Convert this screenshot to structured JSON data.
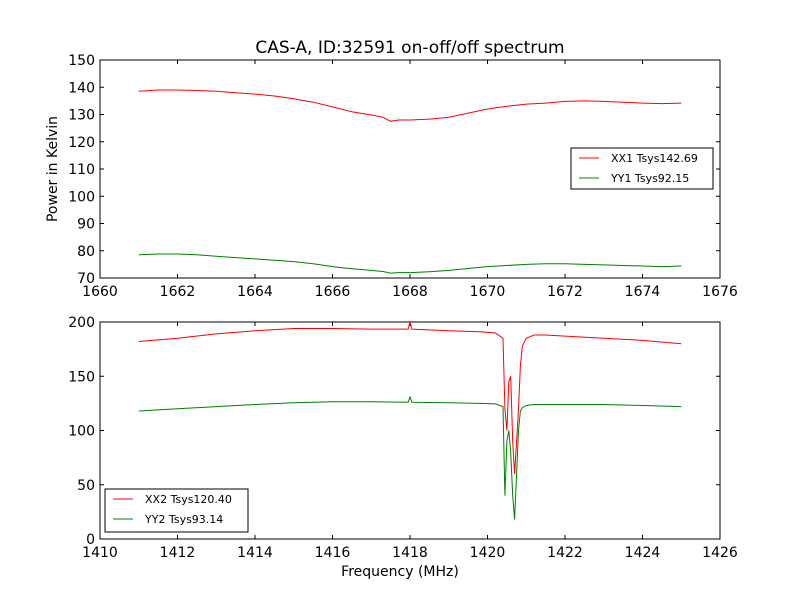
{
  "title": "CAS-A, ID:32591 on-off/off spectrum",
  "colors": {
    "red": "#ff0000",
    "green": "#008000",
    "axes": "#000000",
    "background": "#ffffff"
  },
  "chart_data": [
    {
      "type": "line",
      "xlabel": "",
      "ylabel": "Power in Kelvin",
      "xlim": [
        1660,
        1676
      ],
      "ylim": [
        70,
        150
      ],
      "xticks": [
        1660,
        1662,
        1664,
        1666,
        1668,
        1670,
        1672,
        1674,
        1676
      ],
      "yticks": [
        70,
        80,
        90,
        100,
        110,
        120,
        130,
        140,
        150
      ],
      "legend_position": "right",
      "series": [
        {
          "name": "XX1 Tsys142.69",
          "color": "#ff0000",
          "x": [
            1661,
            1661.5,
            1662,
            1662.5,
            1663,
            1663.5,
            1664,
            1664.5,
            1665,
            1665.5,
            1666,
            1666.5,
            1667,
            1667.3,
            1667.5,
            1667.7,
            1668,
            1668.5,
            1669,
            1669.5,
            1670,
            1670.5,
            1671,
            1671.5,
            1672,
            1672.5,
            1673,
            1673.5,
            1674,
            1674.5,
            1675
          ],
          "y": [
            138.5,
            139,
            139,
            138.8,
            138.5,
            138,
            137.5,
            136.8,
            135.8,
            134.5,
            132.8,
            131,
            129.8,
            129,
            127.5,
            128,
            128,
            128.3,
            129,
            130.5,
            132,
            133,
            133.8,
            134.2,
            134.8,
            135,
            134.8,
            134.5,
            134.2,
            134,
            134.2
          ]
        },
        {
          "name": "YY1 Tsys92.15",
          "color": "#008000",
          "x": [
            1661,
            1661.5,
            1662,
            1662.5,
            1663,
            1663.5,
            1664,
            1664.5,
            1665,
            1665.5,
            1666,
            1666.5,
            1667,
            1667.3,
            1667.5,
            1667.7,
            1668,
            1668.5,
            1669,
            1669.5,
            1670,
            1670.5,
            1671,
            1671.5,
            1672,
            1672.5,
            1673,
            1673.5,
            1674,
            1674.5,
            1675
          ],
          "y": [
            78.5,
            78.8,
            78.8,
            78.5,
            78,
            77.5,
            77,
            76.5,
            76,
            75.2,
            74.2,
            73.4,
            72.8,
            72.4,
            71.8,
            72,
            72,
            72.3,
            72.8,
            73.5,
            74.2,
            74.6,
            75,
            75.2,
            75.2,
            75,
            74.8,
            74.6,
            74.4,
            74.2,
            74.4
          ]
        }
      ]
    },
    {
      "type": "line",
      "xlabel": "Frequency (MHz)",
      "ylabel": "",
      "xlim": [
        1410,
        1426
      ],
      "ylim": [
        0,
        200
      ],
      "xticks": [
        1410,
        1412,
        1414,
        1416,
        1418,
        1420,
        1422,
        1424,
        1426
      ],
      "yticks": [
        0,
        50,
        100,
        150,
        200
      ],
      "legend_position": "lower-left",
      "series": [
        {
          "name": "XX2 Tsys120.40",
          "color": "#ff0000",
          "x": [
            1411,
            1412,
            1413,
            1414,
            1415,
            1416,
            1417,
            1417.95,
            1418,
            1418.05,
            1419,
            1419.8,
            1420.2,
            1420.4,
            1420.45,
            1420.5,
            1420.55,
            1420.6,
            1420.65,
            1420.7,
            1420.75,
            1420.8,
            1420.85,
            1420.9,
            1421,
            1421.2,
            1421.5,
            1422,
            1423,
            1424,
            1425
          ],
          "y": [
            182,
            185,
            189,
            192,
            194,
            194,
            193.5,
            193.5,
            200,
            193.5,
            192,
            191,
            190,
            185,
            120,
            100,
            145,
            150,
            90,
            60,
            90,
            120,
            160,
            178,
            185,
            188,
            188,
            187,
            185,
            183,
            180
          ]
        },
        {
          "name": "YY2 Tsys93.14",
          "color": "#008000",
          "x": [
            1411,
            1412,
            1413,
            1414,
            1415,
            1416,
            1417,
            1417.95,
            1418,
            1418.05,
            1419,
            1419.8,
            1420.2,
            1420.4,
            1420.45,
            1420.5,
            1420.55,
            1420.6,
            1420.65,
            1420.7,
            1420.75,
            1420.8,
            1420.85,
            1420.9,
            1421,
            1421.2,
            1421.5,
            1422,
            1423,
            1424,
            1425
          ],
          "y": [
            118,
            120,
            122,
            124,
            125.5,
            126.5,
            126.5,
            126,
            131,
            126,
            125.5,
            125,
            124.5,
            122,
            40,
            90,
            100,
            80,
            40,
            18,
            60,
            100,
            118,
            121,
            123,
            124,
            124,
            124,
            124,
            123,
            122
          ]
        }
      ]
    }
  ]
}
